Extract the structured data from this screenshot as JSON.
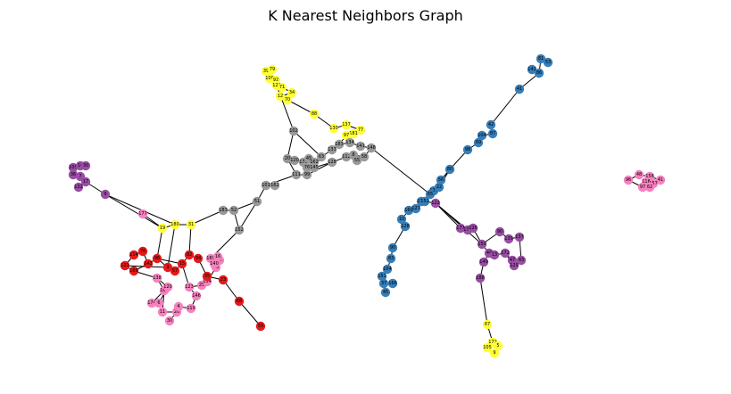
{
  "title": "K Nearest Neighbors Graph",
  "colors": {
    "red": "#e41a1c",
    "blue": "#377eb8",
    "purple": "#984ea3",
    "yellow": "#ffff33",
    "gray": "#999999",
    "pink": "#f781bf",
    "edge": "#000000"
  },
  "clusters": [
    {
      "id": "yellow-top",
      "color": "yellow",
      "nodes": [
        "39",
        "79",
        "108",
        "92",
        "123",
        "71",
        "34",
        "12",
        "70",
        "88",
        "137",
        "130",
        "77",
        "181",
        "97"
      ]
    },
    {
      "id": "gray-center",
      "color": "gray",
      "nodes": [
        "102",
        "20",
        "120",
        "176",
        "45",
        "162",
        "76",
        "145",
        "63",
        "133",
        "183",
        "134",
        "141",
        "148",
        "112",
        "8",
        "58",
        "128",
        "55",
        "111",
        "99",
        "101",
        "162b",
        "51",
        "52",
        "183b",
        "152"
      ]
    },
    {
      "id": "purple-left",
      "color": "purple",
      "nodes": [
        "105",
        "14",
        "30",
        "36",
        "7",
        "17",
        "132",
        "9"
      ]
    },
    {
      "id": "pink-left",
      "color": "pink",
      "nodes": [
        "177",
        "138",
        "163",
        "174",
        "6",
        "120b",
        "11",
        "26",
        "30b",
        "4",
        "119",
        "146",
        "123b",
        "25",
        "154",
        "58b",
        "27",
        "189",
        "140",
        "16"
      ]
    },
    {
      "id": "red-left",
      "color": "red",
      "nodes": [
        "76b",
        "114",
        "121",
        "169",
        "143",
        "96",
        "3",
        "57",
        "15",
        "82",
        "94",
        "35",
        "23",
        "68",
        "59"
      ]
    },
    {
      "id": "yellow-left",
      "color": "yellow",
      "nodes": [
        "31",
        "180",
        "19"
      ]
    },
    {
      "id": "blue-diag",
      "color": "blue",
      "nodes": [
        "81",
        "53",
        "142",
        "86",
        "41",
        "42",
        "87",
        "104",
        "69",
        "98",
        "80",
        "56",
        "127",
        "184",
        "127b",
        "160",
        "10",
        "128b",
        "90",
        "83",
        "104b",
        "151",
        "37",
        "166",
        "45b",
        "22",
        "65",
        "152b"
      ]
    },
    {
      "id": "purple-right",
      "color": "purple",
      "nodes": [
        "171",
        "173",
        "126",
        "90b",
        "139",
        "137b",
        "150",
        "44",
        "13",
        "172",
        "47",
        "43",
        "129",
        "149",
        "188",
        "122"
      ]
    },
    {
      "id": "yellow-bottom",
      "color": "yellow",
      "nodes": [
        "67",
        "172b",
        "5",
        "105b",
        "9b"
      ]
    },
    {
      "id": "pink-right",
      "color": "pink",
      "nodes": [
        "96b",
        "48",
        "156",
        "41b",
        "116",
        "157",
        "62",
        "97b"
      ]
    }
  ]
}
